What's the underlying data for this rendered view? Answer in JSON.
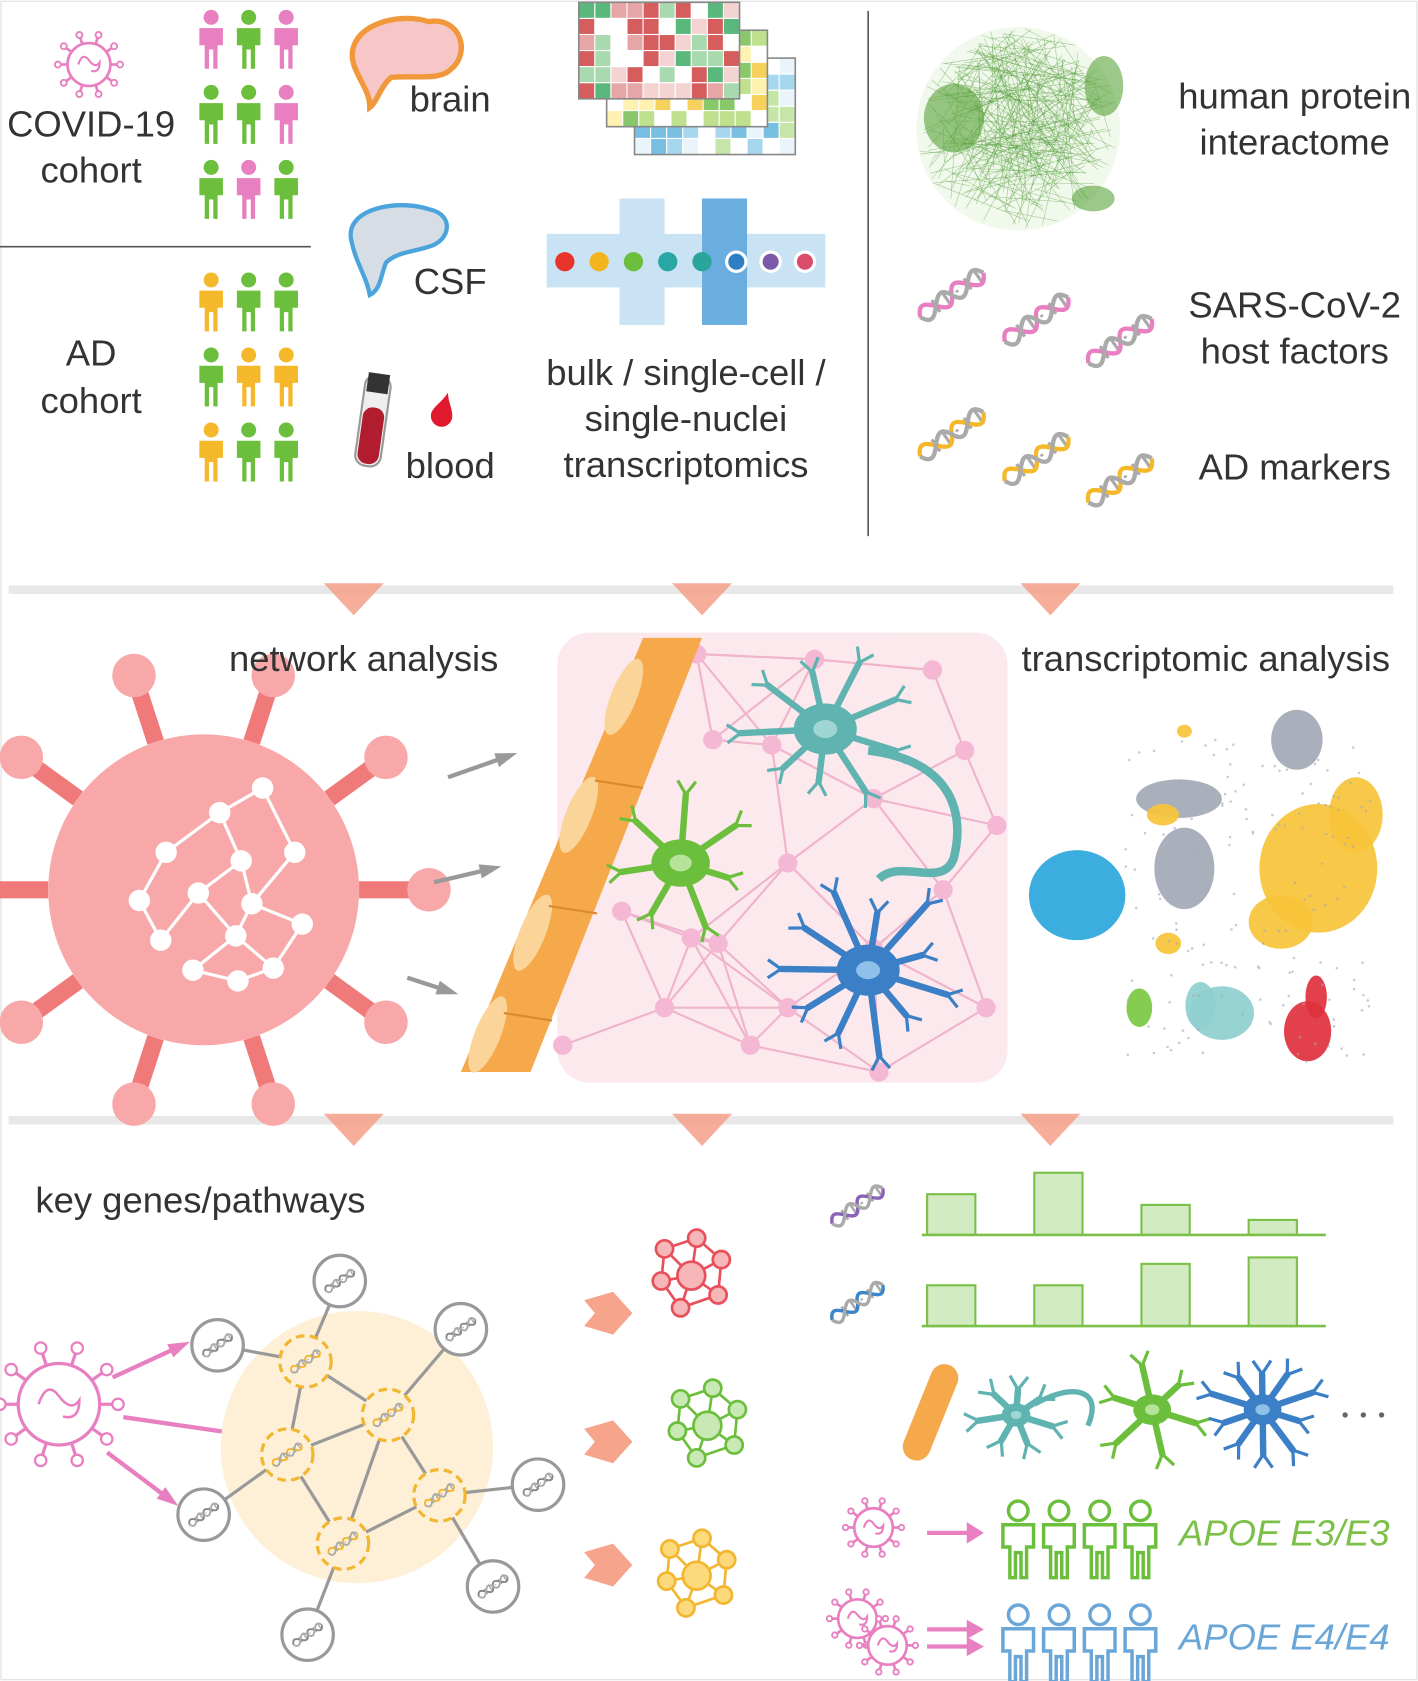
{
  "cohorts": {
    "covid": [
      "COVID-19",
      "cohort"
    ],
    "ad": [
      "AD",
      "cohort"
    ]
  },
  "samples": {
    "brain": "brain",
    "csf": "CSF",
    "blood": "blood"
  },
  "transcriptomics": [
    "bulk / single-cell /",
    "single-nuclei",
    "transcriptomics"
  ],
  "resources": {
    "interactome": [
      "human protein",
      "interactome"
    ],
    "host_factors": [
      "SARS-CoV-2",
      "host factors"
    ],
    "ad_markers": "AD markers"
  },
  "analyses": {
    "network": "network analysis",
    "transcriptomic": "transcriptomic analysis"
  },
  "results": {
    "key_genes": "key genes/pathways",
    "apoe_e3": "APOE E3/E3",
    "apoe_e4": "APOE E4/E4"
  }
}
